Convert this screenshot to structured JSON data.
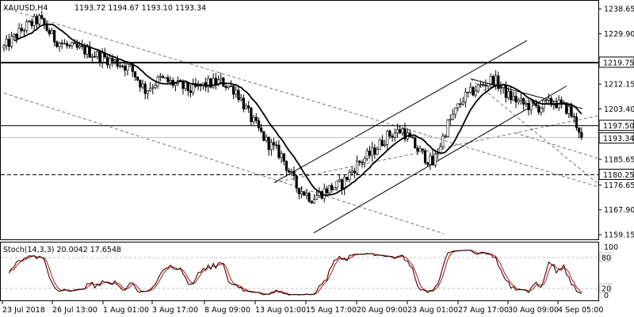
{
  "chart_data": {
    "type": "candlestick",
    "symbol": "XAUUSD,H4",
    "ohlc_header": "1193.72 1194.67 1193.10 1193.34",
    "price_axis": {
      "ylim": [
        1157.5,
        1241.5
      ],
      "ticks": [
        "1238.65",
        "1229.90",
        "1219.75",
        "1212.15",
        "1203.40",
        "1197.50",
        "1193.34",
        "1185.65",
        "1180.25",
        "1176.65",
        "1167.90",
        "1159.15"
      ]
    },
    "time_axis": {
      "ticks": [
        "23 Jul 2018",
        "26 Jul 13:00",
        "1 Aug 01:00",
        "3 Aug 17:00",
        "8 Aug 09:00",
        "13 Aug 01:00",
        "15 Aug 17:00",
        "20 Aug 09:00",
        "23 Aug 01:00",
        "27 Aug 17:00",
        "30 Aug 09:00",
        "4 Sep 05:00"
      ]
    },
    "levels": [
      {
        "value": 1219.75,
        "label": "1219.75",
        "style": "solid-thick"
      },
      {
        "value": 1197.5,
        "label": "1197.50",
        "style": "solid"
      },
      {
        "value": 1193.34,
        "label": "1193.34",
        "style": "current-price"
      },
      {
        "value": 1180.25,
        "label": "1180.25",
        "style": "dashed"
      }
    ],
    "price_anchors": [
      [
        0,
        1225
      ],
      [
        8,
        1232
      ],
      [
        14,
        1235
      ],
      [
        20,
        1228
      ],
      [
        26,
        1225
      ],
      [
        32,
        1224
      ],
      [
        38,
        1222
      ],
      [
        44,
        1220
      ],
      [
        50,
        1218
      ],
      [
        56,
        1210
      ],
      [
        62,
        1214
      ],
      [
        68,
        1212
      ],
      [
        74,
        1210
      ],
      [
        80,
        1212
      ],
      [
        86,
        1213
      ],
      [
        92,
        1210
      ],
      [
        98,
        1200
      ],
      [
        104,
        1192
      ],
      [
        110,
        1187
      ],
      [
        116,
        1176
      ],
      [
        122,
        1172
      ],
      [
        128,
        1175
      ],
      [
        134,
        1177
      ],
      [
        140,
        1184
      ],
      [
        146,
        1188
      ],
      [
        152,
        1194
      ],
      [
        158,
        1196
      ],
      [
        164,
        1189
      ],
      [
        170,
        1184
      ],
      [
        176,
        1198
      ],
      [
        182,
        1207
      ],
      [
        188,
        1211
      ],
      [
        194,
        1214
      ],
      [
        200,
        1208
      ],
      [
        206,
        1205
      ],
      [
        212,
        1204
      ],
      [
        218,
        1206
      ],
      [
        224,
        1203
      ],
      [
        230,
        1193
      ]
    ],
    "stochastic": {
      "label": "Stoch(14,3,3) 20.0042 17.6548",
      "ylim": [
        0,
        100
      ],
      "levels": [
        "80",
        "20"
      ],
      "axis_ticks": [
        "100",
        "0"
      ]
    },
    "colors": {
      "background": "#ffffff",
      "candle_bull_body": "#ffffff",
      "candle_bear_body": "#000000",
      "moving_average": "#000000",
      "stoch_main": "#000000",
      "stoch_signal": "#e00000"
    }
  }
}
